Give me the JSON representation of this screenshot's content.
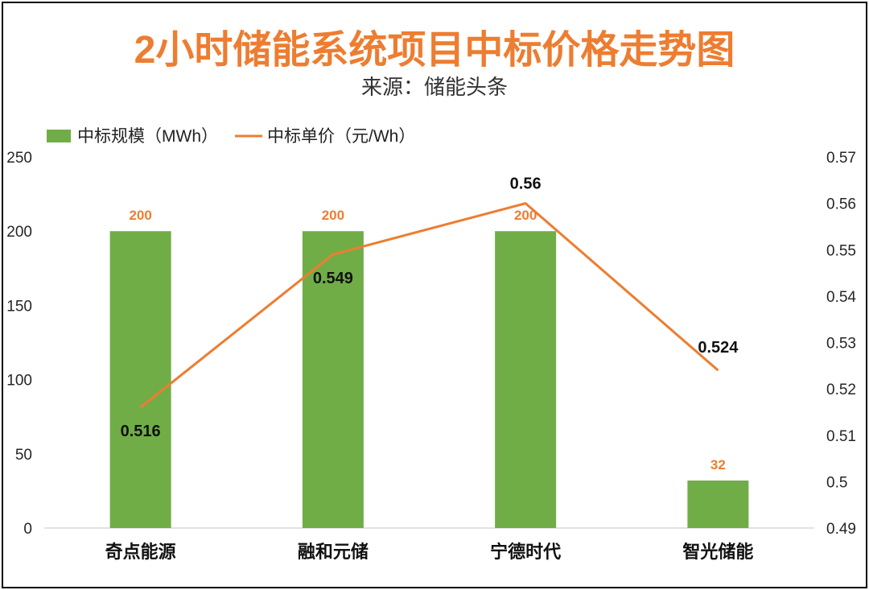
{
  "chart_data": {
    "type": "bar",
    "title": "2小时储能系统项目中标价格走势图",
    "subtitle": "来源：储能头条",
    "categories": [
      "奇点能源",
      "融和元储",
      "宁德时代",
      "智光储能"
    ],
    "series": [
      {
        "name": "中标规模（MWh）",
        "type": "bar",
        "axis": "left",
        "color": "#70AD47",
        "values": [
          200,
          200,
          200,
          32
        ],
        "labels": [
          "200",
          "200",
          "200",
          "32"
        ]
      },
      {
        "name": "中标单价（元/Wh）",
        "type": "line",
        "axis": "right",
        "color": "#ED7D31",
        "values": [
          0.516,
          0.549,
          0.56,
          0.524
        ],
        "labels": [
          "0.516",
          "0.549",
          "0.56",
          "0.524"
        ]
      }
    ],
    "y_left": {
      "min": 0,
      "max": 250,
      "ticks": [
        "0",
        "50",
        "100",
        "150",
        "200",
        "250"
      ]
    },
    "y_right": {
      "min": 0.49,
      "max": 0.57,
      "ticks": [
        "0.49",
        "0.5",
        "0.51",
        "0.52",
        "0.53",
        "0.54",
        "0.55",
        "0.56",
        "0.57"
      ]
    },
    "legend_position": "top-left",
    "grid": false,
    "title_color": "#ED7D31",
    "bar_label_color": "#ED7D31"
  }
}
